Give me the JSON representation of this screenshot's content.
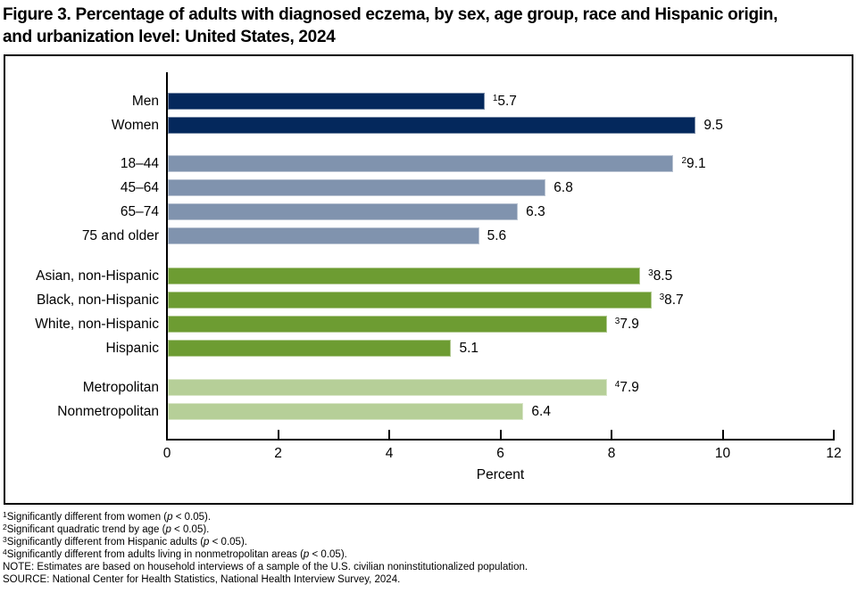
{
  "title_lines": [
    "Figure 3. Percentage of adults with diagnosed eczema, by sex, age group, race and Hispanic origin,",
    "and urbanization level: United States, 2024"
  ],
  "chart_data": {
    "type": "bar",
    "orientation": "horizontal",
    "title": "Figure 3. Percentage of adults with diagnosed eczema, by sex, age group, race and Hispanic origin, and urbanization level: United States, 2024",
    "xlabel": "Percent",
    "xlim": [
      0,
      12
    ],
    "xticks": [
      0,
      2,
      4,
      6,
      8,
      10,
      12
    ],
    "grid": false,
    "legend": "none",
    "groups": [
      {
        "id": "sex",
        "color": "#04285c",
        "bars": [
          {
            "label": "Men",
            "value": 5.7,
            "display": "5.7",
            "sup": "1"
          },
          {
            "label": "Women",
            "value": 9.5,
            "display": "9.5",
            "sup": ""
          }
        ]
      },
      {
        "id": "age-group",
        "color": "#8093ae",
        "bars": [
          {
            "label": "18–44",
            "value": 9.1,
            "display": "9.1",
            "sup": "2"
          },
          {
            "label": "45–64",
            "value": 6.8,
            "display": "6.8",
            "sup": ""
          },
          {
            "label": "65–74",
            "value": 6.3,
            "display": "6.3",
            "sup": ""
          },
          {
            "label": "75 and older",
            "value": 5.6,
            "display": "5.6",
            "sup": ""
          }
        ]
      },
      {
        "id": "race-hispanic-origin",
        "color": "#6d9c32",
        "bars": [
          {
            "label": "Asian, non-Hispanic",
            "value": 8.5,
            "display": "8.5",
            "sup": "3"
          },
          {
            "label": "Black, non-Hispanic",
            "value": 8.7,
            "display": "8.7",
            "sup": "3"
          },
          {
            "label": "White, non-Hispanic",
            "value": 7.9,
            "display": "7.9",
            "sup": "3"
          },
          {
            "label": "Hispanic",
            "value": 5.1,
            "display": "5.1",
            "sup": ""
          }
        ]
      },
      {
        "id": "urbanization-level",
        "color": "#b6cf98",
        "bars": [
          {
            "label": "Metropolitan",
            "value": 7.9,
            "display": "7.9",
            "sup": "4"
          },
          {
            "label": "Nonmetropolitan",
            "value": 6.4,
            "display": "6.4",
            "sup": ""
          }
        ]
      }
    ],
    "footnotes": [
      {
        "sup": "1",
        "before_p": "Significantly different from women (",
        "p": "p",
        "after_p": " < 0.05)."
      },
      {
        "sup": "2",
        "before_p": "Significant quadratic trend by age (",
        "p": "p",
        "after_p": " < 0.05)."
      },
      {
        "sup": "3",
        "before_p": "Significantly different from Hispanic adults (",
        "p": "p",
        "after_p": " < 0.05)."
      },
      {
        "sup": "4",
        "before_p": "Significantly different from adults living in nonmetropolitan areas (",
        "p": "p",
        "after_p": " < 0.05)."
      }
    ],
    "note": "NOTE: Estimates are based on household interviews of a sample of the U.S. civilian noninstitutionalized population.",
    "source": "SOURCE: National Center for Health Statistics, National Health Interview Survey, 2024."
  }
}
